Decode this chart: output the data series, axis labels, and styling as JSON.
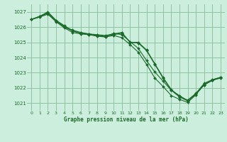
{
  "title": "Graphe pression niveau de la mer (hPa)",
  "bg_color": "#cceedd",
  "grid_color": "#88bb99",
  "line_color": "#1a6b2a",
  "label_color": "#1a6b2a",
  "xlim": [
    -0.5,
    23.5
  ],
  "ylim": [
    1020.5,
    1027.5
  ],
  "yticks": [
    1021,
    1022,
    1023,
    1024,
    1025,
    1026,
    1027
  ],
  "xticks": [
    0,
    1,
    2,
    3,
    4,
    5,
    6,
    7,
    8,
    9,
    10,
    11,
    12,
    13,
    14,
    15,
    16,
    17,
    18,
    19,
    20,
    21,
    22,
    23
  ],
  "series": [
    [
      1026.5,
      1026.7,
      1026.9,
      1026.4,
      1026.0,
      1025.75,
      1025.6,
      1025.55,
      1025.5,
      1025.45,
      1025.55,
      1025.65,
      1025.0,
      1024.95,
      1024.45,
      1023.55,
      1022.65,
      1021.85,
      1021.4,
      1021.15,
      1021.6,
      1022.2,
      1022.5,
      1022.7
    ],
    [
      1026.5,
      1026.7,
      1026.95,
      1026.4,
      1026.05,
      1025.8,
      1025.65,
      1025.55,
      1025.45,
      1025.4,
      1025.5,
      1025.6,
      1025.0,
      1025.0,
      1024.5,
      1023.6,
      1022.7,
      1021.9,
      1021.45,
      1021.2,
      1021.65,
      1022.3,
      1022.55,
      1022.7
    ],
    [
      1026.5,
      1026.7,
      1027.0,
      1026.45,
      1026.1,
      1025.75,
      1025.6,
      1025.5,
      1025.4,
      1025.35,
      1025.45,
      1025.3,
      1024.85,
      1024.35,
      1023.55,
      1022.65,
      1022.1,
      1021.5,
      1021.25,
      1021.05,
      1021.55,
      1022.25,
      1022.5,
      1022.7
    ],
    [
      1026.5,
      1026.65,
      1026.85,
      1026.35,
      1025.95,
      1025.65,
      1025.55,
      1025.5,
      1025.45,
      1025.35,
      1025.6,
      1025.5,
      1025.05,
      1024.6,
      1023.8,
      1023.05,
      1022.45,
      1021.85,
      1021.5,
      1021.15,
      1021.6,
      1022.2,
      1022.5,
      1022.65
    ]
  ]
}
